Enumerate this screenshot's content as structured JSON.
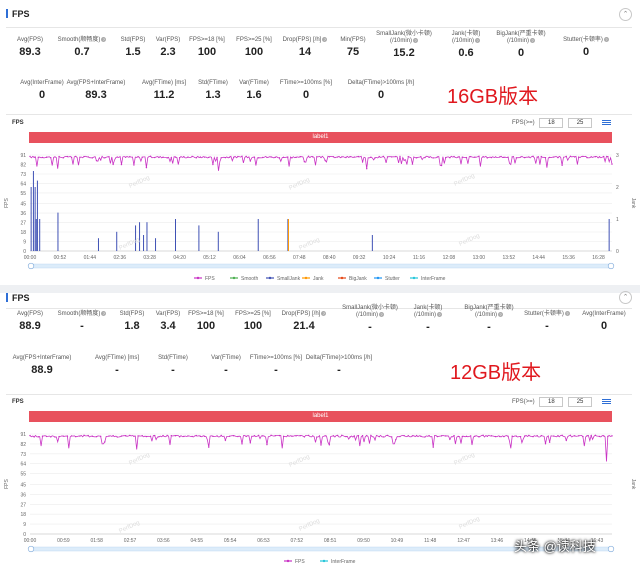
{
  "panels": [
    {
      "title": "FPS",
      "collapse_icon": "chevron-up-icon",
      "rows": [
        [
          {
            "label": "Avg(FPS)",
            "value": "89.3",
            "help": false
          },
          {
            "label": "Smooth(顺畅度)",
            "value": "0.7",
            "help": true
          },
          {
            "label": "Std(FPS)",
            "value": "1.5",
            "help": false
          },
          {
            "label": "Var(FPS)",
            "value": "2.3",
            "help": false
          },
          {
            "label": "FPS>=18 [%]",
            "value": "100",
            "help": false
          },
          {
            "label": "FPS>=25 [%]",
            "value": "100",
            "help": false
          },
          {
            "label": "Drop(FPS) [/h]",
            "value": "14",
            "help": true
          },
          {
            "label": "Min(FPS)",
            "value": "75",
            "help": false
          },
          {
            "label": "SmallJank(微小卡顿)\n(/10min)",
            "value": "15.2",
            "help": true
          },
          {
            "label": "Jank(卡顿)\n(/10min)",
            "value": "0.6",
            "help": true
          },
          {
            "label": "BigJank(严重卡顿)\n(/10min)",
            "value": "0",
            "help": true
          },
          {
            "label": "Stutter(卡顿率)",
            "value": "0",
            "help": true
          }
        ],
        [
          {
            "label": "Avg(InterFrame)",
            "value": "0",
            "help": false
          },
          {
            "label": "Avg(FPS+InterFrame)",
            "value": "89.3",
            "help": false
          },
          {
            "label": "Avg(FTime) [ms]",
            "value": "11.2",
            "help": false
          },
          {
            "label": "Std(FTime)",
            "value": "1.3",
            "help": false
          },
          {
            "label": "Var(FTime)",
            "value": "1.6",
            "help": false
          },
          {
            "label": "FTime>=100ms [%]",
            "value": "0",
            "help": false
          },
          {
            "label": "Delta(FTime)>100ms [/h]",
            "value": "0",
            "help": false
          }
        ]
      ],
      "version_label": "16GB版本",
      "chart": {
        "title": "FPS",
        "fps_label": "FPS(>=)",
        "fps_thresholds": [
          "18",
          "25"
        ],
        "band_label": "label1",
        "y_left_label": "FPS",
        "y_left_ticks": [
          "91",
          "82",
          "73",
          "64",
          "55",
          "45",
          "36",
          "27",
          "18",
          "9",
          "0"
        ],
        "y_right_label": "Jank",
        "y_right_ticks": [
          "3",
          "2",
          "1",
          "0"
        ],
        "x_ticks": [
          "00:00",
          "00:52",
          "01:44",
          "02:36",
          "03:28",
          "04:20",
          "05:12",
          "06:04",
          "06:56",
          "07:48",
          "08:40",
          "09:32",
          "10:24",
          "11:16",
          "12:08",
          "13:00",
          "13:52",
          "14:44",
          "15:36",
          "16:28"
        ],
        "legend": [
          {
            "name": "FPS",
            "color": "#c932c4"
          },
          {
            "name": "Smooth",
            "color": "#4caf50"
          },
          {
            "name": "SmallJank",
            "color": "#3f51b5"
          },
          {
            "name": "Jank",
            "color": "#ff9800"
          },
          {
            "name": "BigJank",
            "color": "#e64a19"
          },
          {
            "name": "Stutter",
            "color": "#2196f3"
          },
          {
            "name": "InterFrame",
            "color": "#26c6da"
          }
        ],
        "watermark": "PerfDog"
      }
    },
    {
      "title": "FPS",
      "collapse_icon": "chevron-up-icon",
      "rows": [
        [
          {
            "label": "Avg(FPS)",
            "value": "88.9",
            "help": false
          },
          {
            "label": "Smooth(顺畅度)",
            "value": "-",
            "help": true
          },
          {
            "label": "Std(FPS)",
            "value": "1.8",
            "help": false
          },
          {
            "label": "Var(FPS)",
            "value": "3.4",
            "help": false
          },
          {
            "label": "FPS>=18 [%]",
            "value": "100",
            "help": false
          },
          {
            "label": "FPS>=25 [%]",
            "value": "100",
            "help": false
          },
          {
            "label": "Drop(FPS) [/h]",
            "value": "21.4",
            "help": true
          },
          {
            "label": "SmallJank(微小卡顿)\n(/10min)",
            "value": "-",
            "help": true
          },
          {
            "label": "Jank(卡顿)\n(/10min)",
            "value": "-",
            "help": true
          },
          {
            "label": "BigJank(严重卡顿)\n(/10min)",
            "value": "-",
            "help": true
          },
          {
            "label": "Stutter(卡顿率)",
            "value": "-",
            "help": true
          },
          {
            "label": "Avg(InterFrame)",
            "value": "0",
            "help": false
          }
        ],
        [
          {
            "label": "Avg(FPS+InterFrame)",
            "value": "88.9",
            "help": false
          },
          {
            "label": "Avg(FTime) [ms]",
            "value": "-",
            "help": false
          },
          {
            "label": "Std(FTime)",
            "value": "-",
            "help": false
          },
          {
            "label": "Var(FTime)",
            "value": "-",
            "help": false
          },
          {
            "label": "FTime>=100ms [%]",
            "value": "-",
            "help": false
          },
          {
            "label": "Delta(FTime)>100ms [/h]",
            "value": "-",
            "help": false
          }
        ]
      ],
      "version_label": "12GB版本",
      "chart": {
        "title": "FPS",
        "fps_label": "FPS(>=)",
        "fps_thresholds": [
          "18",
          "25"
        ],
        "band_label": "label1",
        "y_left_label": "FPS",
        "y_left_ticks": [
          "91",
          "82",
          "73",
          "64",
          "55",
          "45",
          "36",
          "27",
          "18",
          "9",
          "0"
        ],
        "y_right_label": "Jank",
        "y_right_ticks": [],
        "x_ticks": [
          "00:00",
          "00:59",
          "01:58",
          "02:57",
          "03:56",
          "04:55",
          "05:54",
          "06:53",
          "07:52",
          "08:51",
          "09:50",
          "10:49",
          "11:48",
          "12:47",
          "13:46",
          "14:45",
          "15:44",
          "16:43"
        ],
        "legend": [
          {
            "name": "FPS",
            "color": "#c932c4"
          },
          {
            "name": "InterFrame",
            "color": "#26c6da"
          }
        ],
        "watermark": "PerfDog"
      }
    }
  ],
  "source_logo": "头条 @读科技",
  "chart_data": [
    {
      "type": "line",
      "title": "FPS",
      "xlabel": "",
      "ylabel": "FPS",
      "ylim": [
        0,
        91
      ],
      "y2lim": [
        0,
        3
      ],
      "x_ticks": [
        "00:00",
        "00:52",
        "01:44",
        "02:36",
        "03:28",
        "04:20",
        "05:12",
        "06:04",
        "06:56",
        "07:48",
        "08:40",
        "09:32",
        "10:24",
        "11:16",
        "12:08",
        "13:00",
        "13:52",
        "14:44",
        "15:36",
        "16:28"
      ],
      "x_min_seconds": 0,
      "x_max_seconds": 1020,
      "legend_placement": "bottom",
      "grid": true,
      "series": [
        {
          "name": "FPS",
          "baseline": 89,
          "dips": [
            [
              12,
              80
            ],
            [
              48,
              78
            ],
            [
              75,
              82
            ],
            [
              140,
              83
            ],
            [
              205,
              79
            ],
            [
              260,
              82
            ],
            [
              330,
              76
            ],
            [
              395,
              81
            ],
            [
              455,
              80
            ],
            [
              520,
              83
            ],
            [
              590,
              78
            ],
            [
              660,
              82
            ],
            [
              720,
              81
            ],
            [
              790,
              80
            ],
            [
              850,
              83
            ],
            [
              905,
              79
            ],
            [
              960,
              82
            ],
            [
              1015,
              75
            ]
          ]
        },
        {
          "name": "SmallJank",
          "axis": "right",
          "spikes": [
            [
              2,
              2
            ],
            [
              6,
              2.5
            ],
            [
              9,
              2
            ],
            [
              11,
              1
            ],
            [
              13,
              2.2
            ],
            [
              17,
              1
            ],
            [
              49,
              1.2
            ],
            [
              120,
              0.4
            ],
            [
              152,
              0.6
            ],
            [
              185,
              0.8
            ],
            [
              192,
              0.9
            ],
            [
              199,
              0.5
            ],
            [
              205,
              0.9
            ],
            [
              220,
              0.4
            ],
            [
              255,
              1
            ],
            [
              296,
              0.8
            ],
            [
              330,
              0.6
            ],
            [
              400,
              1
            ],
            [
              452,
              1
            ],
            [
              600,
              0.5
            ],
            [
              1015,
              1
            ]
          ]
        },
        {
          "name": "Jank",
          "axis": "right",
          "spikes": [
            [
              453,
              1
            ]
          ]
        },
        {
          "name": "Smooth",
          "values": []
        },
        {
          "name": "BigJank",
          "values": []
        },
        {
          "name": "Stutter",
          "values": []
        },
        {
          "name": "InterFrame",
          "values": []
        }
      ]
    },
    {
      "type": "line",
      "title": "FPS",
      "xlabel": "",
      "ylabel": "FPS",
      "ylim": [
        0,
        91
      ],
      "x_ticks": [
        "00:00",
        "00:59",
        "01:58",
        "02:57",
        "03:56",
        "04:55",
        "05:54",
        "06:53",
        "07:52",
        "08:51",
        "09:50",
        "10:49",
        "11:48",
        "12:47",
        "13:46",
        "14:45",
        "15:44",
        "16:43"
      ],
      "x_min_seconds": 0,
      "x_max_seconds": 1040,
      "legend_placement": "bottom",
      "grid": true,
      "series": [
        {
          "name": "FPS",
          "baseline": 89,
          "dips": [
            [
              20,
              80
            ],
            [
              70,
              78
            ],
            [
              130,
              82
            ],
            [
              190,
              77
            ],
            [
              250,
              81
            ],
            [
              320,
              79
            ],
            [
              380,
              82
            ],
            [
              450,
              78
            ],
            [
              520,
              81
            ],
            [
              590,
              80
            ],
            [
              650,
              82
            ],
            [
              720,
              79
            ],
            [
              790,
              81
            ],
            [
              860,
              78
            ],
            [
              920,
              82
            ],
            [
              990,
              80
            ],
            [
              1030,
              66
            ]
          ]
        },
        {
          "name": "InterFrame",
          "values": []
        }
      ]
    }
  ]
}
